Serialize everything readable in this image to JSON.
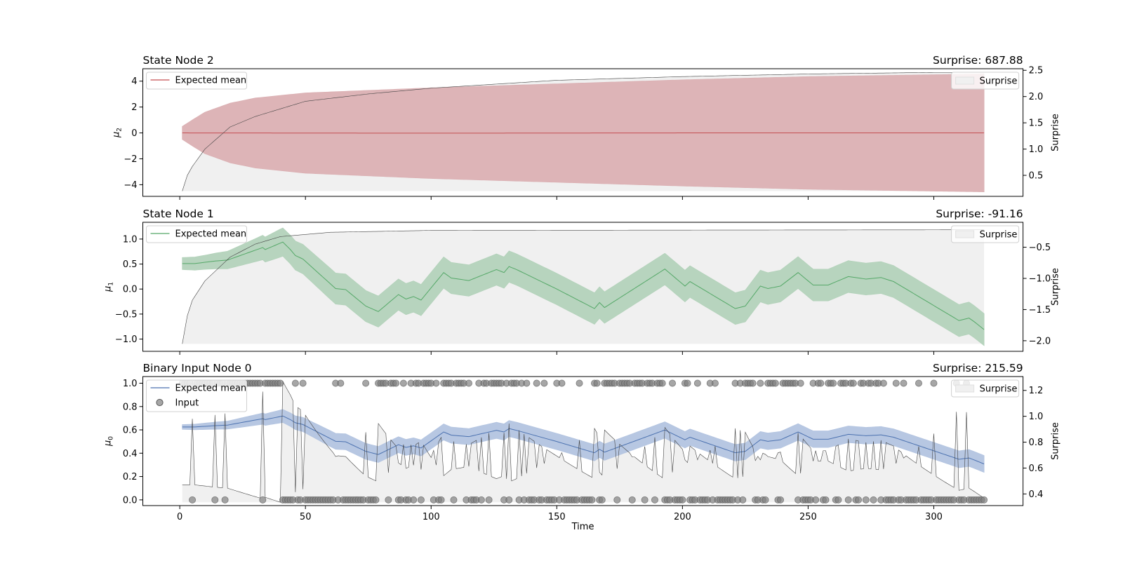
{
  "chart_data": [
    {
      "type": "line",
      "title": "State Node 2",
      "surprise_label": "Surprise: 687.88",
      "ylabel": "μ",
      "ylabel_sub": "2",
      "y2label": "Surprise",
      "ylim": [
        -4.9,
        4.96
      ],
      "y2lim": [
        0.1,
        2.53
      ],
      "y_ticks": [
        "−4",
        "−2",
        "0",
        "2",
        "4"
      ],
      "y2_ticks": [
        "0.5",
        "1.0",
        "1.5",
        "2.0",
        "2.5"
      ],
      "mean_color": "#c44e52",
      "band_color": "#dbb0b3",
      "legend_left": [
        {
          "label": "Expected mean",
          "kind": "line"
        }
      ],
      "legend_right": [
        {
          "label": "Surprise",
          "kind": "patch"
        }
      ],
      "expected_mean": [
        [
          1,
          0.0
        ],
        [
          100,
          -0.02
        ],
        [
          200,
          0.0
        ],
        [
          320,
          0.0
        ]
      ],
      "band_halfwidth": [
        [
          1,
          0.5
        ],
        [
          5,
          1.0
        ],
        [
          10,
          1.6
        ],
        [
          20,
          2.3
        ],
        [
          30,
          2.7
        ],
        [
          50,
          3.1
        ],
        [
          100,
          3.5
        ],
        [
          150,
          3.8
        ],
        [
          200,
          4.1
        ],
        [
          250,
          4.35
        ],
        [
          320,
          4.55
        ]
      ],
      "surprise": [
        [
          1,
          0.2
        ],
        [
          3,
          0.5
        ],
        [
          5,
          0.67
        ],
        [
          10,
          1.0
        ],
        [
          20,
          1.42
        ],
        [
          30,
          1.62
        ],
        [
          50,
          1.91
        ],
        [
          75,
          2.05
        ],
        [
          100,
          2.16
        ],
        [
          150,
          2.31
        ],
        [
          200,
          2.38
        ],
        [
          250,
          2.43
        ],
        [
          300,
          2.46
        ],
        [
          320,
          2.46
        ]
      ]
    },
    {
      "type": "line",
      "title": "State Node 1",
      "surprise_label": "Surprise: -91.16",
      "ylabel": "μ",
      "ylabel_sub": "1",
      "y2label": "Surprise",
      "ylim": [
        -1.245,
        1.335
      ],
      "y2lim": [
        -2.17,
        -0.1
      ],
      "y_ticks": [
        "−1.0",
        "−0.5",
        "0.0",
        "0.5",
        "1.0"
      ],
      "y2_ticks": [
        "−2.0",
        "−1.5",
        "−1.0",
        "−0.5"
      ],
      "mean_color": "#55a868",
      "band_color": "#b3d2ba",
      "legend_left": [
        {
          "label": "Expected mean",
          "kind": "line"
        }
      ],
      "legend_right": [
        {
          "label": "Surprise",
          "kind": "patch"
        }
      ],
      "expected_mean": [
        [
          1,
          0.51
        ],
        [
          6,
          0.51
        ],
        [
          14,
          0.56
        ],
        [
          19,
          0.58
        ],
        [
          33,
          0.83
        ],
        [
          34,
          0.79
        ],
        [
          41,
          0.94
        ],
        [
          44,
          0.79
        ],
        [
          46,
          0.67
        ],
        [
          49,
          0.6
        ],
        [
          62,
          0.01
        ],
        [
          66,
          -0.01
        ],
        [
          74,
          -0.34
        ],
        [
          79,
          -0.45
        ],
        [
          87,
          -0.11
        ],
        [
          90,
          -0.2
        ],
        [
          93,
          -0.15
        ],
        [
          96,
          -0.22
        ],
        [
          105,
          0.33
        ],
        [
          108,
          0.22
        ],
        [
          115,
          0.17
        ],
        [
          119,
          0.25
        ],
        [
          126,
          0.39
        ],
        [
          129,
          0.33
        ],
        [
          131,
          0.45
        ],
        [
          134,
          0.39
        ],
        [
          150,
          0.0
        ],
        [
          165,
          -0.39
        ],
        [
          167,
          -0.27
        ],
        [
          169,
          -0.37
        ],
        [
          193,
          0.4
        ],
        [
          201,
          0.06
        ],
        [
          203,
          0.15
        ],
        [
          221,
          -0.39
        ],
        [
          225,
          -0.34
        ],
        [
          231,
          0.06
        ],
        [
          234,
          0.01
        ],
        [
          239,
          0.06
        ],
        [
          246,
          0.33
        ],
        [
          252,
          0.08
        ],
        [
          258,
          0.08
        ],
        [
          266,
          0.25
        ],
        [
          273,
          0.2
        ],
        [
          279,
          0.23
        ],
        [
          284,
          0.15
        ],
        [
          310,
          -0.63
        ],
        [
          314,
          -0.58
        ],
        [
          316,
          -0.65
        ],
        [
          320,
          -0.81
        ]
      ],
      "band_halfwidth": [
        [
          1,
          0.12
        ],
        [
          10,
          0.14
        ],
        [
          20,
          0.18
        ],
        [
          30,
          0.23
        ],
        [
          40,
          0.28
        ],
        [
          60,
          0.31
        ],
        [
          320,
          0.32
        ]
      ],
      "surprise": [
        [
          1,
          -2.05
        ],
        [
          3,
          -1.6
        ],
        [
          5,
          -1.35
        ],
        [
          10,
          -1.04
        ],
        [
          20,
          -0.66
        ],
        [
          30,
          -0.45
        ],
        [
          40,
          -0.33
        ],
        [
          60,
          -0.26
        ],
        [
          100,
          -0.23
        ],
        [
          320,
          -0.22
        ]
      ]
    },
    {
      "type": "line",
      "title": "Binary Input Node 0",
      "surprise_label": "Surprise: 215.59",
      "ylabel": "μ",
      "ylabel_sub": "0",
      "y2label": "Surprise",
      "ylim": [
        -0.049,
        1.057
      ],
      "y2lim": [
        0.31,
        1.307
      ],
      "y_ticks": [
        "0.0",
        "0.2",
        "0.4",
        "0.6",
        "0.8",
        "1.0"
      ],
      "y2_ticks": [
        "0.4",
        "0.6",
        "0.8",
        "1.0",
        "1.2"
      ],
      "mean_color": "#4c72b0",
      "band_color": "#b3c4e0",
      "input_color": "#808080",
      "legend_left": [
        {
          "label": "Expected mean",
          "kind": "line"
        },
        {
          "label": "Input",
          "kind": "dot"
        }
      ],
      "legend_right": [
        {
          "label": "Surprise",
          "kind": "patch"
        }
      ],
      "expected_mean": [
        [
          1,
          0.625
        ],
        [
          6,
          0.625
        ],
        [
          14,
          0.636
        ],
        [
          19,
          0.641
        ],
        [
          33,
          0.696
        ],
        [
          34,
          0.688
        ],
        [
          41,
          0.719
        ],
        [
          44,
          0.688
        ],
        [
          46,
          0.661
        ],
        [
          49,
          0.646
        ],
        [
          62,
          0.502
        ],
        [
          66,
          0.498
        ],
        [
          74,
          0.416
        ],
        [
          79,
          0.389
        ],
        [
          87,
          0.473
        ],
        [
          90,
          0.45
        ],
        [
          93,
          0.463
        ],
        [
          96,
          0.445
        ],
        [
          105,
          0.582
        ],
        [
          108,
          0.555
        ],
        [
          115,
          0.542
        ],
        [
          119,
          0.562
        ],
        [
          126,
          0.596
        ],
        [
          129,
          0.582
        ],
        [
          131,
          0.611
        ],
        [
          134,
          0.596
        ],
        [
          150,
          0.5
        ],
        [
          165,
          0.404
        ],
        [
          167,
          0.433
        ],
        [
          169,
          0.409
        ],
        [
          193,
          0.599
        ],
        [
          201,
          0.515
        ],
        [
          203,
          0.537
        ],
        [
          221,
          0.404
        ],
        [
          225,
          0.416
        ],
        [
          231,
          0.515
        ],
        [
          234,
          0.502
        ],
        [
          239,
          0.515
        ],
        [
          246,
          0.582
        ],
        [
          252,
          0.52
        ],
        [
          258,
          0.52
        ],
        [
          266,
          0.562
        ],
        [
          273,
          0.55
        ],
        [
          279,
          0.557
        ],
        [
          284,
          0.537
        ],
        [
          310,
          0.348
        ],
        [
          314,
          0.359
        ],
        [
          316,
          0.343
        ],
        [
          320,
          0.308
        ]
      ],
      "band_halfwidth": [
        [
          1,
          0.02
        ],
        [
          20,
          0.035
        ],
        [
          40,
          0.055
        ],
        [
          60,
          0.068
        ],
        [
          320,
          0.072
        ]
      ],
      "input": [
        1,
        1,
        1,
        1,
        0,
        1,
        1,
        1,
        1,
        1,
        1,
        1,
        1,
        0,
        1,
        1,
        1,
        0,
        1,
        1,
        1,
        1,
        1,
        1,
        1,
        1,
        1,
        1,
        1,
        1,
        1,
        1,
        0,
        1,
        1,
        1,
        1,
        1,
        1,
        1,
        0,
        0,
        0,
        0,
        0,
        1,
        0,
        0,
        1,
        0,
        0,
        0,
        0,
        0,
        0,
        0,
        0,
        0,
        0,
        0,
        0,
        1,
        0,
        1,
        0,
        0,
        0,
        0,
        0,
        0,
        0,
        0,
        0,
        1,
        0,
        0,
        0,
        0,
        1,
        1,
        1,
        1,
        0,
        1,
        1,
        1,
        0,
        0,
        1,
        0,
        0,
        1,
        0,
        1,
        1,
        0,
        1,
        1,
        1,
        1,
        0,
        1,
        0,
        0,
        1,
        1,
        1,
        1,
        0,
        1,
        1,
        1,
        1,
        0,
        1,
        0,
        0,
        0,
        1,
        0,
        1,
        1,
        0,
        1,
        1,
        1,
        1,
        1,
        0,
        1,
        0,
        1,
        1,
        1,
        0,
        1,
        0,
        1,
        0,
        0,
        0,
        1,
        0,
        0,
        1,
        0,
        0,
        0,
        0,
        1,
        0,
        1,
        0,
        0,
        0,
        0,
        0,
        0,
        1,
        0,
        0,
        0,
        0,
        0,
        1,
        1,
        0,
        0,
        1,
        1,
        1,
        1,
        1,
        0,
        1,
        1,
        1,
        1,
        1,
        0,
        1,
        1,
        1,
        1,
        0,
        1,
        1,
        1,
        0,
        1,
        1,
        1,
        0,
        0,
        0,
        1,
        0,
        0,
        0,
        0,
        1,
        1,
        0,
        0,
        0,
        1,
        0,
        0,
        0,
        0,
        1,
        0,
        1,
        0,
        0,
        0,
        0,
        0,
        0,
        0,
        1,
        0,
        1,
        0,
        1,
        1,
        1,
        1,
        0,
        0,
        1,
        0,
        0,
        1,
        1,
        1,
        1,
        0,
        0,
        1,
        1,
        1,
        1,
        1,
        1,
        0,
        1,
        0,
        0,
        0,
        0,
        1,
        0,
        1,
        1,
        0,
        0,
        1,
        1,
        1,
        0,
        0,
        1,
        1,
        1,
        0,
        1,
        1,
        0,
        0,
        1,
        1,
        0,
        1,
        1,
        0,
        1,
        1,
        0,
        1,
        0,
        0,
        0,
        0,
        1,
        0,
        0,
        1,
        0,
        0,
        0,
        0,
        0,
        1,
        0,
        0,
        0,
        0,
        0,
        1,
        0,
        0,
        0,
        0,
        0,
        0,
        0,
        0,
        1,
        0,
        0,
        0,
        1,
        0,
        0,
        0,
        0,
        0,
        0,
        0
      ]
    }
  ],
  "x_axis": {
    "label": "Time",
    "xlim": [
      -14.7,
      335.5
    ],
    "ticks": [
      "0",
      "50",
      "100",
      "150",
      "200",
      "250",
      "300"
    ]
  },
  "surprise_style": {
    "fill_color": "#f0f0f0",
    "line_color": "#444444"
  }
}
